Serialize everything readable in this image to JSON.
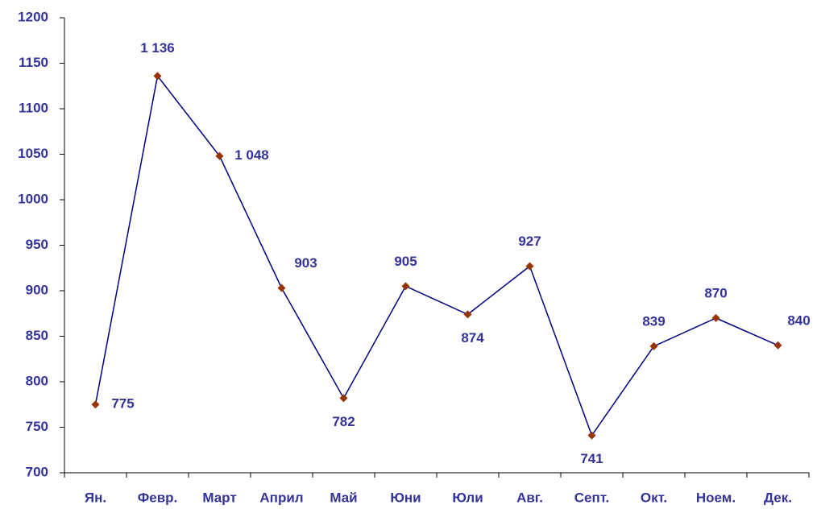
{
  "chart_data": {
    "type": "line",
    "categories": [
      "Ян.",
      "Февр.",
      "Март",
      "Април",
      "Май",
      "Юни",
      "Юли",
      "Авг.",
      "Септ.",
      "Окт.",
      "Ноем.",
      "Дек."
    ],
    "series": [
      {
        "color": "#000080",
        "marker_color": "#993300",
        "values": [
          775,
          1136,
          1048,
          903,
          782,
          905,
          874,
          927,
          741,
          839,
          870,
          840
        ],
        "value_labels": [
          "775",
          "1 136",
          "1 048",
          "903",
          "782",
          "905",
          "874",
          "927",
          "741",
          "839",
          "870",
          "840"
        ]
      }
    ],
    "ylim": [
      700,
      1200
    ],
    "yticks": [
      700,
      750,
      800,
      850,
      900,
      950,
      1000,
      1050,
      1100,
      1150,
      1200
    ],
    "grid": false
  }
}
